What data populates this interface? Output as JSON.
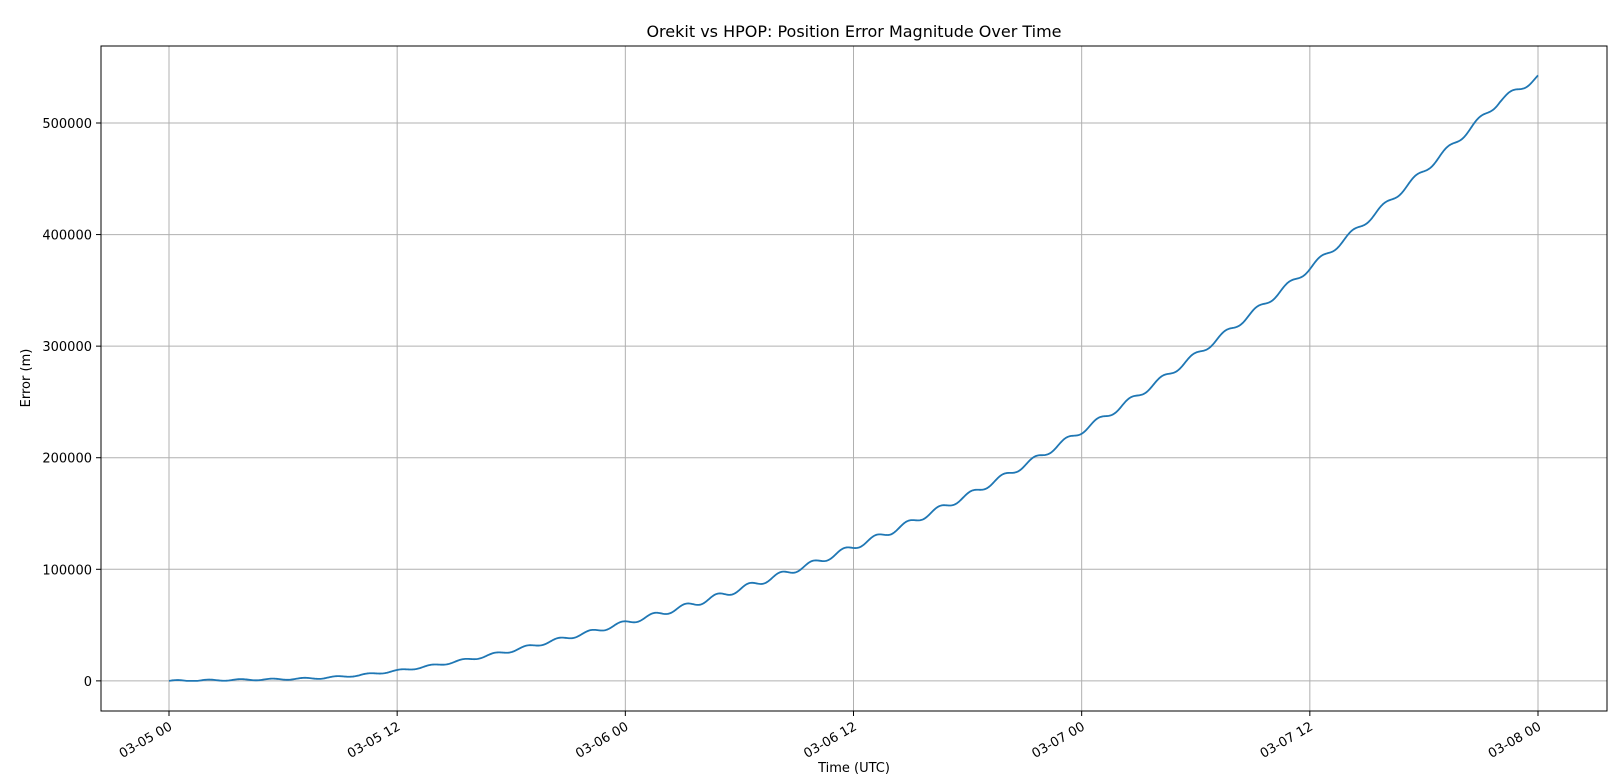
{
  "chart_data": {
    "type": "line",
    "title": "Orekit vs HPOP: Position Error Magnitude Over Time",
    "xlabel": "Time (UTC)",
    "ylabel": "Error (m)",
    "x_range": [
      "03-05 00",
      "03-08 00"
    ],
    "ylim": [
      -27000,
      569000
    ],
    "grid": true,
    "x_ticks": [
      {
        "label": "03-05 00",
        "hours": 0
      },
      {
        "label": "03-05 12",
        "hours": 12
      },
      {
        "label": "03-06 00",
        "hours": 24
      },
      {
        "label": "03-06 12",
        "hours": 36
      },
      {
        "label": "03-07 00",
        "hours": 48
      },
      {
        "label": "03-07 12",
        "hours": 60
      },
      {
        "label": "03-08 00",
        "hours": 72
      }
    ],
    "y_ticks": [
      0,
      100000,
      200000,
      300000,
      400000,
      500000
    ],
    "series": [
      {
        "color": "#1f77b4",
        "x": [
          "03-05 00:00",
          "03-05 02:00",
          "03-05 04:00",
          "03-05 06:00",
          "03-05 08:00",
          "03-05 10:00",
          "03-05 12:00",
          "03-05 14:00",
          "03-05 16:00",
          "03-05 18:00",
          "03-05 20:00",
          "03-05 22:00",
          "03-06 00:00",
          "03-06 02:00",
          "03-06 04:00",
          "03-06 06:00",
          "03-06 08:00",
          "03-06 10:00",
          "03-06 12:00",
          "03-06 14:00",
          "03-06 16:00",
          "03-06 18:00",
          "03-06 20:00",
          "03-06 22:00",
          "03-07 00:00",
          "03-07 02:00",
          "03-07 04:00",
          "03-07 06:00",
          "03-07 08:00",
          "03-07 10:00",
          "03-07 12:00",
          "03-07 14:00",
          "03-07 16:00",
          "03-07 18:00",
          "03-07 20:00",
          "03-07 22:00",
          "03-08 00:00"
        ],
        "values": [
          0,
          500,
          1000,
          1500,
          2500,
          5000,
          9000,
          14000,
          20000,
          27000,
          35000,
          43000,
          52000,
          61000,
          71000,
          82000,
          94000,
          106000,
          120000,
          134000,
          150000,
          166000,
          184000,
          203000,
          224000,
          245000,
          268000,
          292000,
          317000,
          343000,
          370000,
          398000,
          427000,
          457000,
          488000,
          520000,
          541000
        ],
        "oscillation": {
          "period_hours": 1.67,
          "amplitude": 2500
        }
      }
    ]
  }
}
